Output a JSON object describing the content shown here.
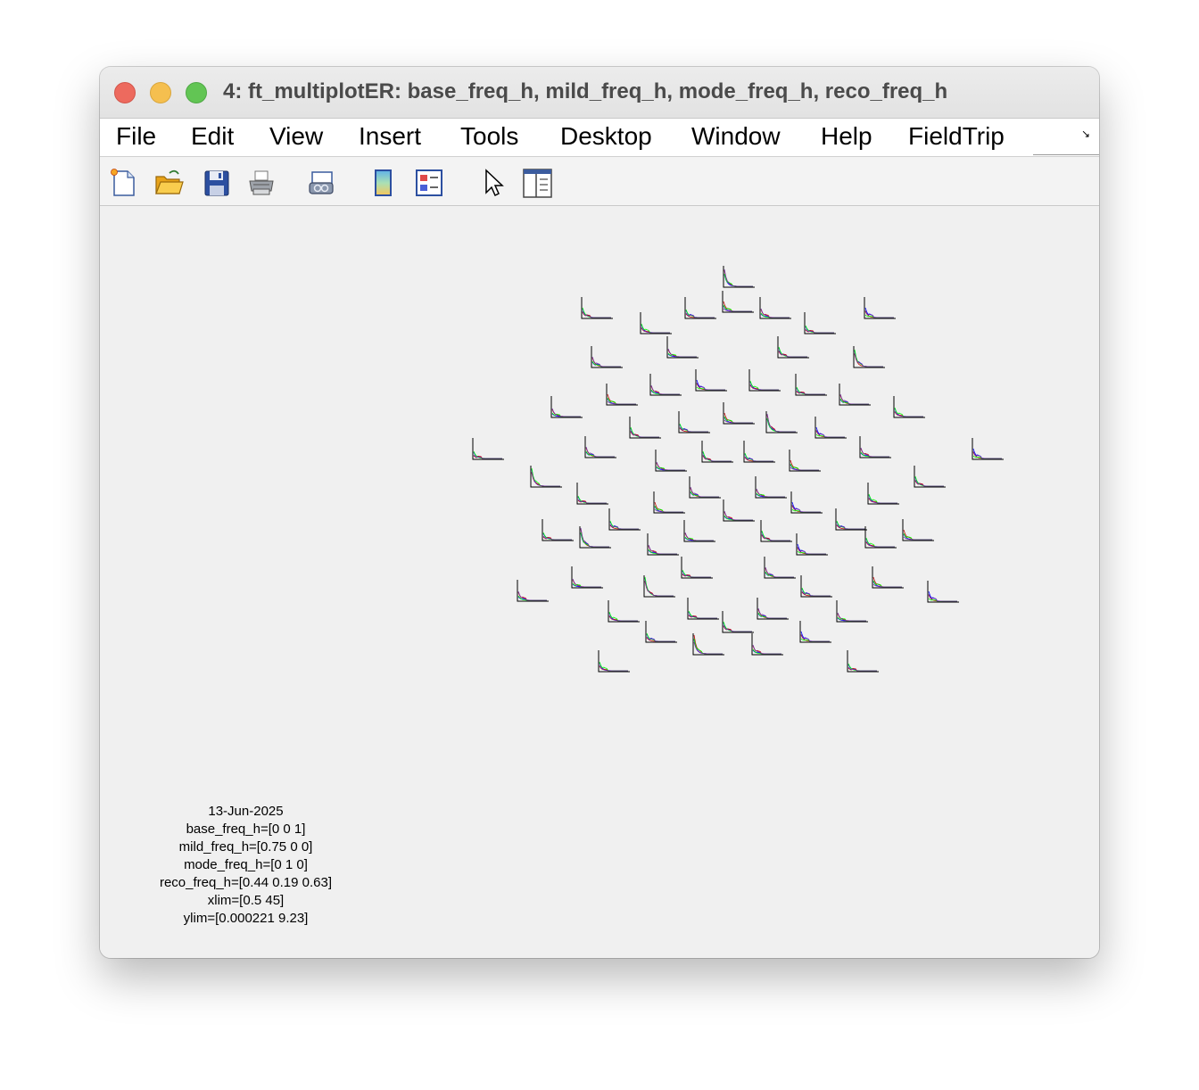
{
  "window": {
    "title": "4: ft_multiplotER: base_freq_h, mild_freq_h, mode_freq_h, reco_freq_h"
  },
  "menubar": {
    "items": [
      "File",
      "Edit",
      "View",
      "Insert",
      "Tools",
      "Desktop",
      "Window",
      "Help",
      "FieldTrip"
    ],
    "dock_icon": "dock-arrow-icon"
  },
  "toolbar": {
    "buttons": [
      {
        "name": "new-figure",
        "icon": "new-document-icon"
      },
      {
        "name": "open-file",
        "icon": "open-folder-icon"
      },
      {
        "name": "save-figure",
        "icon": "floppy-disk-icon"
      },
      {
        "name": "print-figure",
        "icon": "printer-icon"
      },
      {
        "name": "link-plot",
        "icon": "link-plot-icon"
      },
      {
        "name": "insert-colorbar",
        "icon": "colorbar-icon"
      },
      {
        "name": "insert-legend",
        "icon": "legend-icon"
      },
      {
        "name": "edit-plot",
        "icon": "pointer-arrow-icon"
      },
      {
        "name": "show-plot-tools",
        "icon": "plot-tools-icon"
      }
    ]
  },
  "info": {
    "date": "13-Jun-2025",
    "lines": [
      "base_freq_h=[0 0 1]",
      "mild_freq_h=[0.75 0 0]",
      "mode_freq_h=[0 1 0]",
      "reco_freq_h=[0.44 0.19 0.63]",
      "xlim=[0.5 45]",
      "ylim=[0.000221 9.23]"
    ]
  },
  "chart_data": {
    "type": "line",
    "xlim": [
      0.5,
      45
    ],
    "ylim": [
      0.000221,
      9.23
    ],
    "series": [
      {
        "name": "base_freq_h",
        "color": "#0000ff"
      },
      {
        "name": "mild_freq_h",
        "color": "#bf0000"
      },
      {
        "name": "mode_freq_h",
        "color": "#00ff00"
      },
      {
        "name": "reco_freq_h",
        "color": "#7030a1"
      }
    ],
    "grid": false,
    "layout": "topographic-multiplot"
  }
}
